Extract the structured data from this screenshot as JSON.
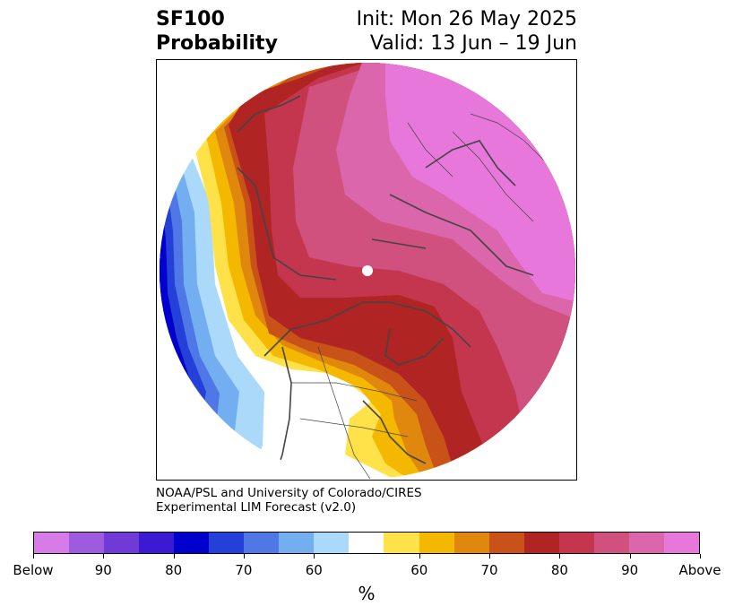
{
  "header": {
    "title_line1": "SF100",
    "title_line2": "Probability",
    "init_line": "Init: Mon 26 May 2025",
    "valid_line": "Valid: 13 Jun – 19 Jun"
  },
  "credit": {
    "line1": "NOAA/PSL and University of Colorado/CIRES",
    "line2": "Experimental LIM Forecast (v2.0)"
  },
  "colorbar": {
    "unit": "%",
    "colors": [
      "#d67be8",
      "#9e5be0",
      "#6f3ad6",
      "#3c1ad2",
      "#0000cc",
      "#2440d8",
      "#4f78e6",
      "#73aef0",
      "#abd9fa",
      "#ffffff",
      "#ffe24a",
      "#f5b800",
      "#e0870e",
      "#c85218",
      "#b02424",
      "#c4364e",
      "#d0507e",
      "#dc66ab",
      "#e877dc"
    ],
    "tick_labels": [
      "Below",
      "90",
      "80",
      "70",
      "60",
      "60",
      "70",
      "80",
      "90",
      "Above"
    ]
  },
  "map": {
    "projection": "north-polar-stereographic",
    "palette": {
      "pink": "#e877dc",
      "mauve": "#dc66ab",
      "rose": "#d0507e",
      "crimson": "#c4364e",
      "red": "#b02424",
      "burnt": "#c85218",
      "orange": "#e0870e",
      "gold": "#f5b800",
      "yellow": "#ffe24a",
      "light_blue": "#abd9fa",
      "sky": "#73aef0",
      "blue": "#4f78e6",
      "royal": "#2440d8",
      "navy": "#0000cc"
    }
  }
}
